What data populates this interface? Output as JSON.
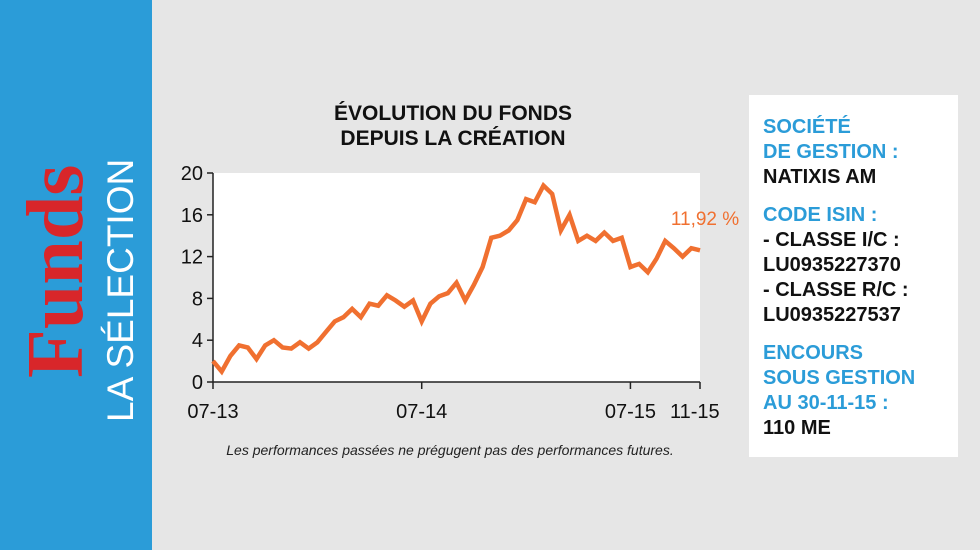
{
  "sidebar": {
    "brand": "Funds",
    "subtitle": "LA SÉLECTION"
  },
  "chart_data": {
    "type": "line",
    "title": [
      "ÉVOLUTION DU FONDS",
      "DEPUIS LA CRÉATION"
    ],
    "values": [
      2,
      1,
      2.5,
      3.5,
      3.3,
      2.2,
      3.5,
      4,
      3.3,
      3.2,
      3.8,
      3.2,
      3.8,
      4.8,
      5.8,
      6.2,
      7,
      6.2,
      7.5,
      7.3,
      8.3,
      7.8,
      7.2,
      7.8,
      5.8,
      7.5,
      8.2,
      8.5,
      9.5,
      7.8,
      9.3,
      11,
      13.8,
      14,
      14.5,
      15.5,
      17.5,
      17.2,
      18.8,
      18,
      14.5,
      16,
      13.5,
      14,
      13.5,
      14.3,
      13.5,
      13.8,
      11,
      11.3,
      10.5,
      11.8,
      13.5,
      12.8,
      12,
      12.8,
      12.6
    ],
    "color": "#f07030",
    "xlim": [
      0,
      56
    ],
    "xticks": [
      {
        "value": 0,
        "label": "07-13"
      },
      {
        "value": 24,
        "label": "07-14"
      },
      {
        "value": 48,
        "label": "07-15"
      },
      {
        "value": 56,
        "label": "11-15"
      }
    ],
    "ylim": [
      0,
      20
    ],
    "yticks": [
      0,
      4,
      8,
      12,
      16,
      20
    ],
    "annotation": "11,92 %",
    "footnote": "Les performances passées ne prégugent pas des performances futures."
  },
  "info": {
    "items": [
      {
        "label": [
          "SOCIÉTÉ",
          "DE GESTION :"
        ],
        "value": [
          "NATIXIS AM"
        ]
      },
      {
        "label": [
          "CODE ISIN :"
        ],
        "value": [
          "- CLASSE I/C :",
          "LU0935227370",
          "- CLASSE R/C :",
          "LU0935227537"
        ]
      },
      {
        "label": [
          "ENCOURS",
          "SOUS GESTION",
          "AU 30-11-15 :"
        ],
        "value": [
          "110 ME"
        ]
      }
    ]
  }
}
